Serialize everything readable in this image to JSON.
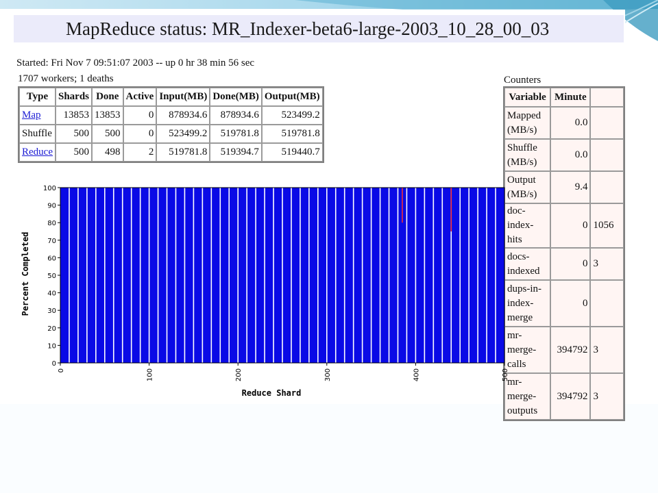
{
  "page": {
    "title": "MapReduce status: MR_Indexer-beta6-large-2003_10_28_00_03",
    "started": "Started: Fri Nov 7 09:51:07 2003 -- up 0 hr 38 min 56 sec",
    "workers": "1707 workers; 1 deaths"
  },
  "status_table": {
    "headers": [
      "Type",
      "Shards",
      "Done",
      "Active",
      "Input(MB)",
      "Done(MB)",
      "Output(MB)"
    ],
    "rows": [
      {
        "type": "Map",
        "link": true,
        "shards": "13853",
        "done": "13853",
        "active": "0",
        "input": "878934.6",
        "done_mb": "878934.6",
        "output": "523499.2"
      },
      {
        "type": "Shuffle",
        "link": false,
        "shards": "500",
        "done": "500",
        "active": "0",
        "input": "523499.2",
        "done_mb": "519781.8",
        "output": "519781.8"
      },
      {
        "type": "Reduce",
        "link": true,
        "shards": "500",
        "done": "498",
        "active": "2",
        "input": "519781.8",
        "done_mb": "519394.7",
        "output": "519440.7"
      }
    ]
  },
  "counters": {
    "label": "Counters",
    "headers": [
      "Variable",
      "Minute",
      ""
    ],
    "rows": [
      {
        "variable": "Mapped (MB/s)",
        "minute": "0.0",
        "extra": ""
      },
      {
        "variable": "Shuffle (MB/s)",
        "minute": "0.0",
        "extra": ""
      },
      {
        "variable": "Output (MB/s)",
        "minute": "9.4",
        "extra": ""
      },
      {
        "variable": "doc-index-hits",
        "minute": "0",
        "extra": "1056"
      },
      {
        "variable": "docs-indexed",
        "minute": "0",
        "extra": "3"
      },
      {
        "variable": "dups-in-index-merge",
        "minute": "0",
        "extra": ""
      },
      {
        "variable": "mr-merge-calls",
        "minute": "394792",
        "extra": "3"
      },
      {
        "variable": "mr-merge-outputs",
        "minute": "394792",
        "extra": "3"
      }
    ]
  },
  "chart_data": {
    "type": "bar",
    "xlabel": "Reduce Shard",
    "ylabel": "Percent Completed",
    "xlim": [
      0,
      500
    ],
    "ylim": [
      0,
      100
    ],
    "xticks": [
      0,
      100,
      200,
      300,
      400,
      500
    ],
    "yticks": [
      0,
      10,
      20,
      30,
      40,
      50,
      60,
      70,
      80,
      90,
      100
    ],
    "stripe_count": 50,
    "fill_color": "#0a0ae6",
    "stripe_color": "#ffffff",
    "active_color": "#ff3030",
    "series": [
      {
        "name": "",
        "values": "all shards 100 except active shards",
        "default": 100
      }
    ],
    "active_shards": [
      {
        "shard": 385,
        "value": 80
      },
      {
        "shard": 440,
        "value": 75
      }
    ]
  },
  "colors": {
    "title_bar": "#ebebfa",
    "counter_bg": "#fff5f3",
    "link": "#1a1ad4",
    "theme_teal": "#4aa8c8"
  }
}
